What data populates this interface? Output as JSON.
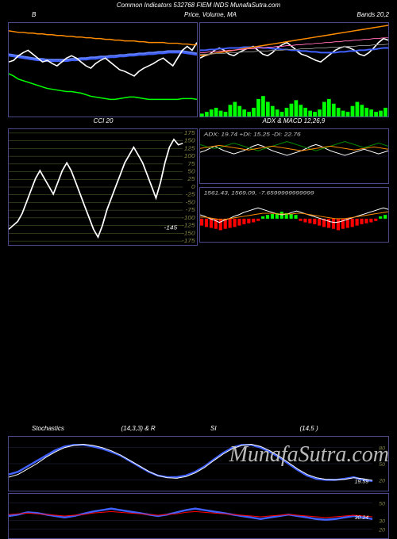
{
  "header": {
    "text": "Common Indicators 532768 FIEM INDS MunafaSutra.com",
    "fontSize": 8
  },
  "colors": {
    "bg": "#000000",
    "border": "#4a4a8a",
    "green": "#00ff00",
    "darkGreen": "#008800",
    "blue": "#4060ff",
    "lightBlue": "#6080ff",
    "white": "#ffffff",
    "orange": "#ff8c00",
    "red": "#ff0000",
    "pink": "#ff69b4",
    "yellow": "#888844",
    "gray": "#888888",
    "gridGreen": "#556b2f"
  },
  "charts": {
    "bollinger": {
      "title_left": "B",
      "title_right": "Bands 20,2",
      "green_line": [
        55,
        52,
        48,
        46,
        44,
        42,
        40,
        38,
        36,
        35,
        34,
        33,
        32,
        32,
        31,
        30,
        28,
        26,
        25,
        24,
        23,
        22,
        22,
        23,
        24,
        25,
        25,
        24,
        23,
        22,
        22,
        22,
        22,
        22,
        22,
        22,
        23,
        23,
        23,
        22
      ],
      "blue_line1": [
        78,
        77,
        76,
        75,
        74,
        73,
        72,
        72,
        71,
        71,
        71,
        71,
        71,
        72,
        72,
        73,
        73,
        74,
        74,
        75,
        75,
        76,
        76,
        77,
        77,
        78,
        78,
        79,
        79,
        80,
        80,
        81,
        81,
        82,
        82,
        82,
        82,
        81,
        80,
        79
      ],
      "blue_line2": [
        80,
        79,
        78,
        77,
        76,
        75,
        74,
        74,
        73,
        73,
        73,
        73,
        73,
        74,
        74,
        75,
        75,
        76,
        76,
        77,
        77,
        78,
        78,
        79,
        79,
        80,
        80,
        81,
        81,
        82,
        82,
        83,
        83,
        84,
        84,
        84,
        84,
        83,
        82,
        81
      ],
      "white_line": [
        70,
        72,
        78,
        82,
        85,
        80,
        75,
        70,
        72,
        68,
        65,
        70,
        75,
        78,
        75,
        70,
        65,
        62,
        68,
        72,
        75,
        70,
        65,
        60,
        58,
        55,
        52,
        58,
        62,
        65,
        68,
        72,
        75,
        70,
        65,
        75,
        85,
        90,
        85,
        95
      ],
      "orange_line": [
        110,
        109,
        108,
        108,
        107,
        107,
        106,
        106,
        105,
        105,
        104,
        104,
        103,
        103,
        102,
        102,
        101,
        101,
        100,
        100,
        99,
        99,
        98,
        98,
        97,
        97,
        97,
        96,
        96,
        95,
        95,
        95,
        95,
        94,
        94,
        94,
        93,
        93,
        92,
        92
      ]
    },
    "price": {
      "title": "Price, Volume, MA",
      "green_bars": [
        5,
        8,
        12,
        15,
        10,
        8,
        20,
        25,
        18,
        12,
        8,
        15,
        30,
        35,
        25,
        18,
        12,
        8,
        15,
        22,
        28,
        20,
        15,
        10,
        8,
        12,
        25,
        30,
        22,
        15,
        10,
        8,
        18,
        25,
        20,
        15,
        12,
        8,
        10,
        15
      ],
      "white_line": [
        45,
        48,
        50,
        55,
        58,
        55,
        50,
        48,
        52,
        55,
        58,
        60,
        55,
        50,
        48,
        52,
        58,
        62,
        65,
        60,
        55,
        50,
        48,
        45,
        42,
        40,
        45,
        50,
        55,
        58,
        60,
        58,
        55,
        50,
        48,
        52,
        58,
        65,
        70,
        68
      ],
      "blue_line": [
        55,
        55,
        56,
        56,
        57,
        57,
        58,
        58,
        58,
        59,
        59,
        59,
        59,
        58,
        58,
        57,
        57,
        56,
        56,
        55,
        55,
        54,
        54,
        53,
        53,
        52,
        52,
        52,
        52,
        53,
        53,
        54,
        54,
        55,
        55,
        56,
        56,
        57,
        58,
        58
      ],
      "orange_line": [
        48,
        49,
        50,
        51,
        52,
        53,
        54,
        55,
        56,
        57,
        58,
        59,
        60,
        61,
        62,
        63,
        64,
        65,
        66,
        67,
        68,
        69,
        70,
        71,
        72,
        73,
        74,
        75,
        76,
        77,
        78,
        79,
        80,
        81,
        82,
        83,
        84,
        85,
        86,
        87
      ],
      "pink_line": [
        52,
        52,
        53,
        53,
        54,
        54,
        55,
        55,
        56,
        56,
        57,
        57,
        58,
        58,
        59,
        59,
        60,
        60,
        61,
        61,
        62,
        62,
        63,
        63,
        64,
        64,
        65,
        65,
        66,
        66,
        67,
        67,
        68,
        68,
        69,
        69,
        70,
        70,
        71,
        71
      ],
      "gray_line": [
        50,
        50,
        50,
        51,
        51,
        51,
        52,
        52,
        52,
        53,
        53,
        53,
        54,
        54,
        54,
        55,
        55,
        55,
        56,
        56,
        56,
        57,
        57,
        57,
        58,
        58,
        58,
        59,
        59,
        59,
        60,
        60,
        60,
        61,
        61,
        61,
        62,
        62,
        62,
        63
      ]
    },
    "cci": {
      "title": "CCI 20",
      "y_labels": [
        "175",
        "150",
        "125",
        "100",
        "75",
        "50",
        "25",
        "0",
        "-25",
        "-50",
        "-75",
        "-100",
        "-125",
        "-150",
        "-175"
      ],
      "white_line": [
        20,
        25,
        30,
        40,
        55,
        70,
        85,
        95,
        85,
        75,
        65,
        80,
        95,
        105,
        95,
        80,
        65,
        50,
        35,
        20,
        10,
        25,
        45,
        60,
        75,
        90,
        105,
        115,
        125,
        115,
        105,
        90,
        75,
        60,
        80,
        105,
        125,
        135,
        128,
        130
      ],
      "annotation": "-145"
    },
    "adx": {
      "title": "ADX   & MACD 12,26,9",
      "top_text": "ADX: 19.74   +DI: 15.25 -DI: 22.76",
      "white_line": [
        30,
        32,
        35,
        38,
        35,
        32,
        30,
        28,
        30,
        32,
        35,
        38,
        40,
        38,
        35,
        32,
        30,
        28,
        26,
        28,
        30,
        32,
        35,
        38,
        40,
        38,
        35,
        32,
        30,
        28,
        26,
        28,
        30,
        32,
        34,
        32,
        30,
        28,
        30,
        32
      ],
      "green_line": [
        40,
        38,
        36,
        35,
        36,
        38,
        40,
        42,
        40,
        38,
        36,
        34,
        32,
        34,
        36,
        38,
        40,
        42,
        44,
        42,
        40,
        38,
        36,
        34,
        32,
        34,
        36,
        38,
        40,
        42,
        44,
        42,
        40,
        38,
        36,
        38,
        40,
        42,
        40,
        38
      ],
      "orange_line": [
        35,
        36,
        37,
        38,
        39,
        38,
        37,
        36,
        35,
        34,
        33,
        34,
        35,
        36,
        37,
        38,
        37,
        36,
        35,
        34,
        33,
        32,
        33,
        34,
        35,
        36,
        37,
        38,
        37,
        36,
        35,
        34,
        33,
        34,
        35,
        36,
        37,
        36,
        35,
        34
      ]
    },
    "macd": {
      "top_text": "1561.43,  1569.09, -7.6599999999999",
      "red_bars": [
        15,
        18,
        20,
        22,
        25,
        22,
        20,
        18,
        15,
        12,
        10,
        8,
        5,
        0,
        0,
        0,
        0,
        0,
        0,
        0,
        0,
        5,
        8,
        10,
        12,
        15,
        18,
        20,
        22,
        25,
        22,
        20,
        18,
        15,
        12,
        10,
        8,
        5,
        0,
        0
      ],
      "green_bars": [
        0,
        0,
        0,
        0,
        0,
        0,
        0,
        0,
        0,
        0,
        0,
        0,
        0,
        5,
        8,
        10,
        12,
        15,
        12,
        10,
        8,
        0,
        0,
        0,
        0,
        0,
        0,
        0,
        0,
        0,
        0,
        0,
        0,
        0,
        0,
        0,
        0,
        0,
        5,
        8
      ],
      "white_line": [
        35,
        33,
        30,
        28,
        25,
        28,
        30,
        33,
        35,
        38,
        40,
        42,
        44,
        42,
        40,
        38,
        36,
        35,
        36,
        38,
        40,
        38,
        36,
        34,
        32,
        30,
        28,
        26,
        25,
        26,
        28,
        30,
        32,
        34,
        36,
        38,
        40,
        42,
        44,
        42
      ],
      "orange_line": [
        32,
        32,
        31,
        30,
        29,
        29,
        30,
        31,
        32,
        33,
        34,
        35,
        36,
        37,
        37,
        37,
        36,
        36,
        36,
        36,
        37,
        37,
        36,
        35,
        34,
        33,
        32,
        31,
        30,
        30,
        30,
        31,
        32,
        33,
        34,
        35,
        36,
        37,
        38,
        39
      ]
    },
    "stoch": {
      "title_left": "Stochastics",
      "title_mid": "(14,3,3) & R",
      "title_mid2": "SI",
      "title_right": "(14,5                                        )",
      "y_labels": [
        "80",
        "50",
        "20"
      ],
      "annotation": "19.59",
      "blue_line": [
        30,
        35,
        45,
        55,
        65,
        75,
        82,
        85,
        85,
        82,
        78,
        72,
        65,
        55,
        45,
        35,
        28,
        25,
        25,
        28,
        35,
        45,
        58,
        70,
        80,
        85,
        85,
        80,
        72,
        62,
        50,
        38,
        28,
        22,
        20,
        20,
        22,
        25,
        20,
        18
      ],
      "white_line": [
        25,
        30,
        40,
        50,
        62,
        72,
        80,
        84,
        86,
        84,
        80,
        74,
        66,
        56,
        46,
        36,
        28,
        24,
        23,
        26,
        33,
        43,
        56,
        68,
        78,
        84,
        86,
        82,
        74,
        64,
        52,
        40,
        30,
        24,
        21,
        20,
        21,
        24,
        22,
        19
      ]
    },
    "rsi": {
      "y_labels": [
        "50",
        "30",
        "20"
      ],
      "annotation": "30.24",
      "blue_line": [
        40,
        42,
        45,
        44,
        42,
        40,
        38,
        40,
        43,
        46,
        48,
        50,
        48,
        46,
        44,
        42,
        40,
        42,
        45,
        48,
        50,
        48,
        46,
        44,
        42,
        40,
        38,
        36,
        38,
        40,
        42,
        40,
        38,
        36,
        35,
        36,
        38,
        40,
        38,
        36
      ],
      "red_line": [
        42,
        43,
        44,
        43,
        42,
        41,
        40,
        41,
        42,
        44,
        45,
        46,
        45,
        44,
        43,
        42,
        41,
        42,
        43,
        45,
        46,
        45,
        44,
        43,
        42,
        41,
        40,
        39,
        40,
        41,
        42,
        41,
        40,
        39,
        38,
        39,
        40,
        41,
        40,
        39
      ]
    }
  },
  "watermark": "MunafaSutra.com"
}
